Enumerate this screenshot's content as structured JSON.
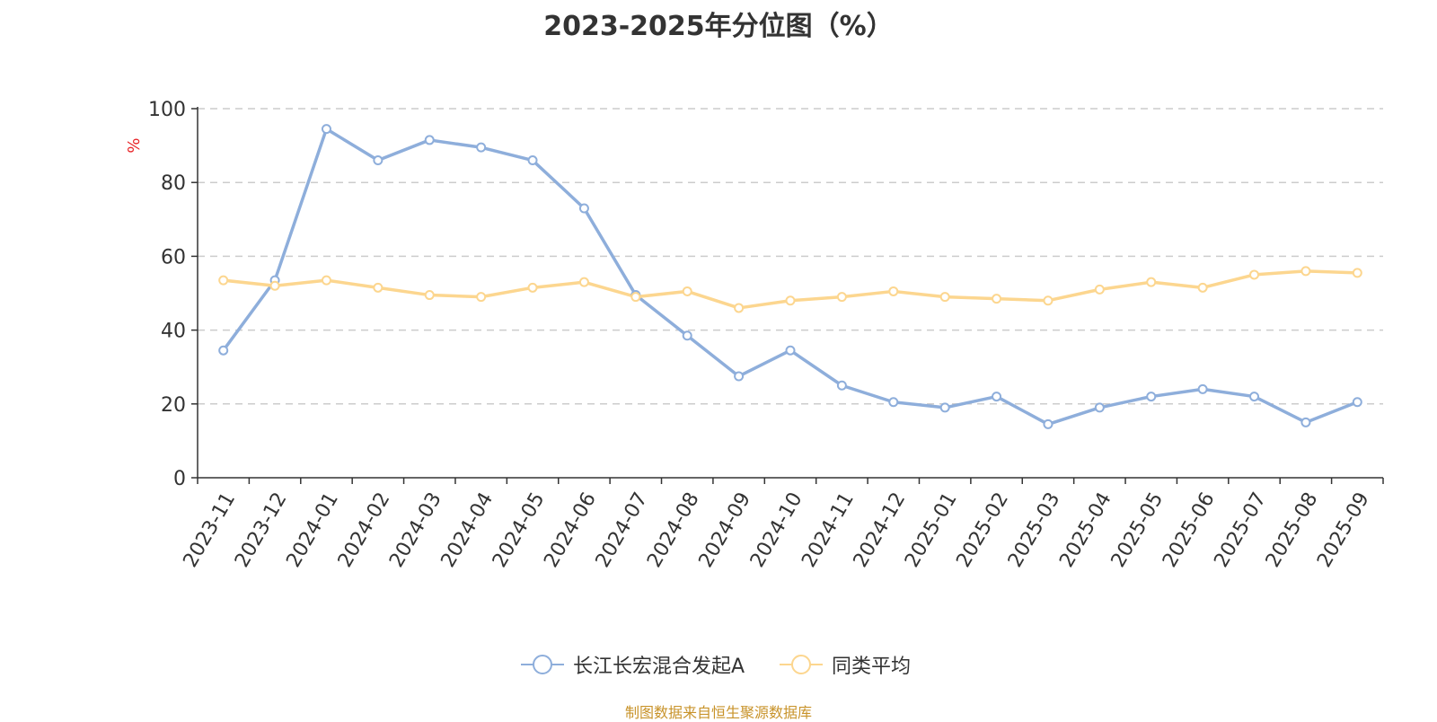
{
  "chart_data": {
    "type": "line",
    "title": "2023-2025年分位图（%）",
    "ylabel": "%",
    "ylim": [
      0,
      100
    ],
    "yticks": [
      0,
      20,
      40,
      60,
      80,
      100
    ],
    "grid": true,
    "legend_position": "bottom",
    "categories": [
      "2023-11",
      "2023-12",
      "2024-01",
      "2024-02",
      "2024-03",
      "2024-04",
      "2024-05",
      "2024-06",
      "2024-07",
      "2024-08",
      "2024-09",
      "2024-10",
      "2024-11",
      "2024-12",
      "2025-01",
      "2025-02",
      "2025-03",
      "2025-04",
      "2025-05",
      "2025-06",
      "2025-07",
      "2025-08",
      "2025-09"
    ],
    "series": [
      {
        "name": "长江长宏混合发起A",
        "color": "#8eaedb",
        "values": [
          34.5,
          53.5,
          94.5,
          86,
          91.5,
          89.5,
          86,
          73,
          49.5,
          38.5,
          27.5,
          34.5,
          25,
          20.5,
          19,
          22,
          14.5,
          19,
          22,
          24,
          22,
          15,
          20.5
        ]
      },
      {
        "name": "同类平均",
        "color": "#fcd68f",
        "values": [
          53.5,
          52,
          53.5,
          51.5,
          49.5,
          49,
          51.5,
          53,
          49,
          50.5,
          46,
          48,
          49,
          50.5,
          49,
          48.5,
          48,
          51,
          53,
          51.5,
          55,
          56,
          55.5
        ]
      }
    ]
  },
  "footer": {
    "source": "制图数据来自恒生聚源数据库"
  }
}
